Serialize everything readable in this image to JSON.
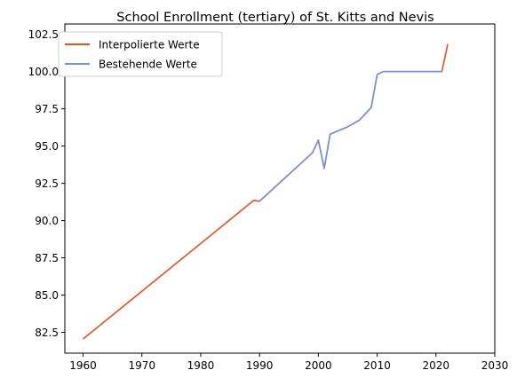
{
  "chart_data": {
    "type": "line",
    "title": "School Enrollment (tertiary) of St. Kitts and Nevis",
    "xlabel": "",
    "ylabel": "",
    "xlim": [
      1956.9,
      2030
    ],
    "ylim": [
      81.1,
      103.2
    ],
    "xticks": [
      1960,
      1970,
      1980,
      1990,
      2000,
      2010,
      2020,
      2030
    ],
    "yticks": [
      82.5,
      85.0,
      87.5,
      90.0,
      92.5,
      95.0,
      97.5,
      100.0,
      102.5
    ],
    "grid": false,
    "legend_position": "top-left",
    "series": [
      {
        "name": "Interpolierte Werte",
        "color": "#e8501a",
        "x": [
          1960,
          1989,
          1990,
          1999,
          2000,
          2001,
          2002,
          2005,
          2007,
          2009,
          2010,
          2011,
          2021,
          2022
        ],
        "y": [
          82.05,
          91.35,
          91.3,
          94.55,
          95.4,
          93.5,
          95.8,
          96.3,
          96.75,
          97.6,
          99.8,
          100.0,
          100.0,
          101.85
        ]
      },
      {
        "name": "Bestehende Werte",
        "color": "#6f94e0",
        "x": [
          1990,
          1999,
          2000,
          2001,
          2002,
          2005,
          2007,
          2009,
          2010,
          2011,
          2021
        ],
        "y": [
          91.3,
          94.55,
          95.4,
          93.5,
          95.8,
          96.3,
          96.75,
          97.6,
          99.8,
          100.0,
          100.0
        ]
      }
    ]
  }
}
